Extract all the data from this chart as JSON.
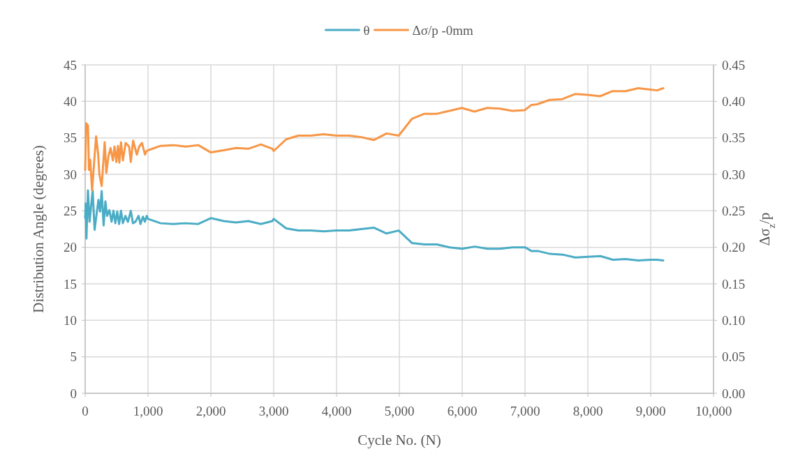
{
  "chart_data": {
    "type": "line",
    "xlabel": "Cycle No. (N)",
    "ylabel": "Distribution Angle (degrees)",
    "y2label": "Δσ$_{z}$/p",
    "xlim": [
      0,
      10000
    ],
    "xticks": [
      0,
      {
        "value": 1000,
        "label": "1,000"
      },
      {
        "value": 2000,
        "label": "2,000"
      },
      {
        "value": 3000,
        "label": "3,000"
      },
      {
        "value": 4000,
        "label": "4,000"
      },
      {
        "value": 5000,
        "label": "5,000"
      },
      {
        "value": 6000,
        "label": "6,000"
      },
      {
        "value": 7000,
        "label": "7,000"
      },
      {
        "value": 8000,
        "label": "8,000"
      },
      {
        "value": 9000,
        "label": "9,000"
      },
      {
        "value": 10000,
        "label": "10,000"
      }
    ],
    "ylim": [
      0,
      45
    ],
    "yticks": [
      0,
      5,
      10,
      15,
      20,
      25,
      30,
      35,
      40,
      45
    ],
    "y2lim": [
      0,
      0.45
    ],
    "y2ticks": [
      {
        "value": 0,
        "label": "0.00"
      },
      {
        "value": 0.05,
        "label": "0.05"
      },
      {
        "value": 0.1,
        "label": "0.10"
      },
      {
        "value": 0.15,
        "label": "0.15"
      },
      {
        "value": 0.2,
        "label": "0.20"
      },
      {
        "value": 0.25,
        "label": "0.25"
      },
      {
        "value": 0.3,
        "label": "0.30"
      },
      {
        "value": 0.35,
        "label": "0.35"
      },
      {
        "value": 0.4,
        "label": "0.40"
      },
      {
        "value": 0.45,
        "label": "0.45"
      }
    ],
    "grid": true,
    "legend": "top",
    "marker": "none",
    "line_style": "solid",
    "series": [
      {
        "name": "θ",
        "color": "#4bacc6",
        "x": [
          0,
          8,
          20,
          44,
          70,
          119,
          150,
          211,
          237,
          263,
          293,
          322,
          348,
          385,
          420,
          450,
          480,
          510,
          540,
          570,
          600,
          640,
          680,
          726,
          760,
          800,
          850,
          880,
          920,
          950,
          980,
          1000,
          1200,
          1400,
          1600,
          1800,
          2000,
          2204,
          2398,
          2597,
          2796,
          2979,
          3000,
          3199,
          3393,
          3592,
          3796,
          3995,
          4199,
          4393,
          4592,
          4796,
          4990,
          5199,
          5398,
          5597,
          5800,
          6000,
          6200,
          6400,
          6600,
          6800,
          7000,
          7100,
          7200,
          7400,
          7600,
          7800,
          8000,
          8200,
          8400,
          8600,
          8800,
          9000,
          9100,
          9200
        ],
        "values": [
          24,
          26,
          21.2,
          27.8,
          23.5,
          27.8,
          22.4,
          26.5,
          24.9,
          27.7,
          23,
          26.3,
          24.3,
          25.1,
          23.5,
          25,
          23.3,
          24.9,
          23.2,
          25,
          23.3,
          24.3,
          23.5,
          25,
          23.3,
          23.5,
          24.3,
          23.2,
          24.2,
          23.5,
          24.3,
          23.9,
          23.3,
          23.2,
          23.3,
          23.2,
          24,
          23.6,
          23.4,
          23.6,
          23.2,
          23.6,
          23.9,
          22.6,
          22.3,
          22.3,
          22.2,
          22.3,
          22.3,
          22.5,
          22.7,
          21.9,
          22.3,
          20.6,
          20.4,
          20.4,
          20,
          19.8,
          20.1,
          19.8,
          19.8,
          20,
          20,
          19.5,
          19.5,
          19.1,
          19,
          18.6,
          18.7,
          18.8,
          18.3,
          18.4,
          18.2,
          18.3,
          18.3,
          18.2
        ]
      },
      {
        "name": "Δσ/p -0mm",
        "color": "#f79646",
        "axis": "y2",
        "x": [
          0,
          15,
          44,
          60,
          80,
          110,
          150,
          174,
          207,
          226,
          263,
          311,
          337,
          370,
          404,
          441,
          467,
          496,
          522,
          544,
          570,
          600,
          644,
          700,
          726,
          763,
          822,
          859,
          904,
          952,
          978,
          1000,
          1200,
          1400,
          1600,
          1800,
          2000,
          2204,
          2398,
          2597,
          2796,
          2979,
          3000,
          3199,
          3393,
          3592,
          3796,
          3995,
          4199,
          4393,
          4592,
          4796,
          4990,
          5199,
          5398,
          5597,
          5796,
          5995,
          6194,
          6398,
          6597,
          6796,
          6995,
          7099,
          7194,
          7393,
          7592,
          7796,
          7995,
          8194,
          8393,
          8600,
          8800,
          9000,
          9100,
          9200
        ],
        "values": [
          0.306,
          0.37,
          0.367,
          0.306,
          0.32,
          0.278,
          0.325,
          0.352,
          0.327,
          0.3,
          0.284,
          0.344,
          0.302,
          0.325,
          0.336,
          0.319,
          0.338,
          0.317,
          0.339,
          0.316,
          0.344,
          0.319,
          0.343,
          0.338,
          0.317,
          0.346,
          0.327,
          0.338,
          0.343,
          0.327,
          0.332,
          0.333,
          0.339,
          0.34,
          0.338,
          0.34,
          0.33,
          0.333,
          0.336,
          0.335,
          0.341,
          0.335,
          0.332,
          0.348,
          0.353,
          0.353,
          0.355,
          0.353,
          0.353,
          0.351,
          0.347,
          0.356,
          0.353,
          0.376,
          0.383,
          0.383,
          0.387,
          0.391,
          0.386,
          0.391,
          0.39,
          0.387,
          0.388,
          0.395,
          0.396,
          0.402,
          0.403,
          0.41,
          0.409,
          0.407,
          0.414,
          0.414,
          0.418,
          0.416,
          0.415,
          0.418
        ]
      }
    ]
  }
}
